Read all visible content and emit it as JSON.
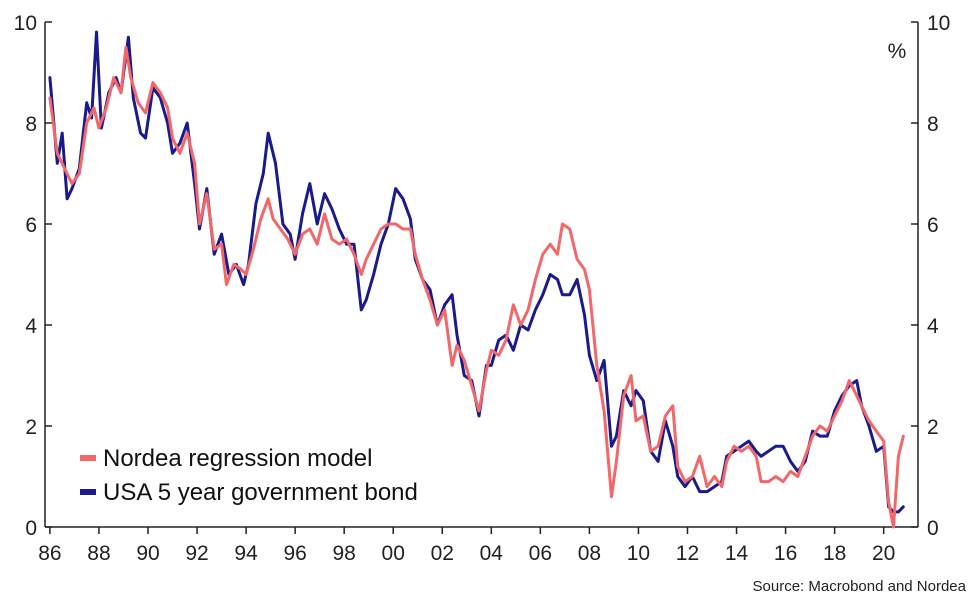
{
  "chart_data": {
    "type": "line",
    "unit_label": "%",
    "source": "Source: Macrobond and Nordea",
    "x_tick_labels": [
      "86",
      "88",
      "90",
      "92",
      "94",
      "96",
      "98",
      "00",
      "02",
      "04",
      "06",
      "08",
      "10",
      "12",
      "14",
      "16",
      "18",
      "20"
    ],
    "y_tick_labels": [
      "0",
      "2",
      "4",
      "6",
      "8",
      "10"
    ],
    "xlim": [
      1985.8,
      2021.4
    ],
    "ylim": [
      0,
      10
    ],
    "legend_position": "bottom-left",
    "grid": false,
    "series": [
      {
        "name": "Nordea regression model",
        "color": "#f2686a",
        "points": [
          [
            1986.0,
            8.5
          ],
          [
            1986.3,
            7.4
          ],
          [
            1986.6,
            7.1
          ],
          [
            1986.9,
            6.8
          ],
          [
            1987.2,
            7.0
          ],
          [
            1987.5,
            8.0
          ],
          [
            1987.8,
            8.3
          ],
          [
            1988.0,
            7.9
          ],
          [
            1988.3,
            8.3
          ],
          [
            1988.6,
            8.9
          ],
          [
            1988.9,
            8.6
          ],
          [
            1989.1,
            9.5
          ],
          [
            1989.3,
            8.9
          ],
          [
            1989.6,
            8.4
          ],
          [
            1989.9,
            8.2
          ],
          [
            1990.2,
            8.8
          ],
          [
            1990.5,
            8.6
          ],
          [
            1990.8,
            8.3
          ],
          [
            1991.0,
            7.7
          ],
          [
            1991.3,
            7.4
          ],
          [
            1991.6,
            7.8
          ],
          [
            1991.9,
            7.2
          ],
          [
            1992.1,
            6.0
          ],
          [
            1992.4,
            6.6
          ],
          [
            1992.7,
            5.5
          ],
          [
            1993.0,
            5.6
          ],
          [
            1993.2,
            4.8
          ],
          [
            1993.5,
            5.2
          ],
          [
            1993.8,
            5.1
          ],
          [
            1994.0,
            5.0
          ],
          [
            1994.3,
            5.5
          ],
          [
            1994.6,
            6.1
          ],
          [
            1994.9,
            6.5
          ],
          [
            1995.1,
            6.1
          ],
          [
            1995.4,
            5.9
          ],
          [
            1995.7,
            5.7
          ],
          [
            1996.0,
            5.4
          ],
          [
            1996.3,
            5.8
          ],
          [
            1996.6,
            5.9
          ],
          [
            1996.9,
            5.6
          ],
          [
            1997.2,
            6.2
          ],
          [
            1997.5,
            5.7
          ],
          [
            1997.8,
            5.6
          ],
          [
            1998.1,
            5.7
          ],
          [
            1998.4,
            5.4
          ],
          [
            1998.7,
            5.0
          ],
          [
            1998.9,
            5.3
          ],
          [
            1999.2,
            5.6
          ],
          [
            1999.5,
            5.9
          ],
          [
            1999.8,
            6.0
          ],
          [
            2000.1,
            6.0
          ],
          [
            2000.4,
            5.9
          ],
          [
            2000.7,
            5.9
          ],
          [
            2000.9,
            5.4
          ],
          [
            2001.2,
            4.9
          ],
          [
            2001.5,
            4.5
          ],
          [
            2001.8,
            4.0
          ],
          [
            2002.1,
            4.3
          ],
          [
            2002.4,
            3.2
          ],
          [
            2002.6,
            3.6
          ],
          [
            2002.9,
            3.3
          ],
          [
            2003.2,
            2.8
          ],
          [
            2003.5,
            2.3
          ],
          [
            2003.8,
            3.1
          ],
          [
            2004.0,
            3.5
          ],
          [
            2004.3,
            3.4
          ],
          [
            2004.6,
            3.7
          ],
          [
            2004.9,
            4.4
          ],
          [
            2005.2,
            4.0
          ],
          [
            2005.5,
            4.3
          ],
          [
            2005.8,
            4.9
          ],
          [
            2006.1,
            5.4
          ],
          [
            2006.4,
            5.6
          ],
          [
            2006.7,
            5.4
          ],
          [
            2006.9,
            6.0
          ],
          [
            2007.2,
            5.9
          ],
          [
            2007.5,
            5.3
          ],
          [
            2007.8,
            5.1
          ],
          [
            2008.0,
            4.7
          ],
          [
            2008.3,
            3.2
          ],
          [
            2008.6,
            2.3
          ],
          [
            2008.9,
            0.6
          ],
          [
            2009.1,
            1.3
          ],
          [
            2009.4,
            2.6
          ],
          [
            2009.7,
            3.0
          ],
          [
            2009.9,
            2.1
          ],
          [
            2010.2,
            2.2
          ],
          [
            2010.5,
            1.5
          ],
          [
            2010.8,
            1.6
          ],
          [
            2011.1,
            2.2
          ],
          [
            2011.4,
            2.4
          ],
          [
            2011.6,
            1.2
          ],
          [
            2011.9,
            0.9
          ],
          [
            2012.2,
            1.0
          ],
          [
            2012.5,
            1.4
          ],
          [
            2012.8,
            0.8
          ],
          [
            2013.1,
            1.0
          ],
          [
            2013.4,
            0.8
          ],
          [
            2013.6,
            1.3
          ],
          [
            2013.9,
            1.6
          ],
          [
            2014.2,
            1.5
          ],
          [
            2014.5,
            1.6
          ],
          [
            2014.8,
            1.4
          ],
          [
            2015.0,
            0.9
          ],
          [
            2015.3,
            0.9
          ],
          [
            2015.6,
            1.0
          ],
          [
            2015.9,
            0.9
          ],
          [
            2016.2,
            1.1
          ],
          [
            2016.5,
            1.0
          ],
          [
            2016.8,
            1.4
          ],
          [
            2017.1,
            1.8
          ],
          [
            2017.4,
            2.0
          ],
          [
            2017.7,
            1.9
          ],
          [
            2018.0,
            2.2
          ],
          [
            2018.3,
            2.5
          ],
          [
            2018.6,
            2.9
          ],
          [
            2018.9,
            2.6
          ],
          [
            2019.1,
            2.4
          ],
          [
            2019.4,
            2.1
          ],
          [
            2019.7,
            1.9
          ],
          [
            2020.0,
            1.7
          ],
          [
            2020.2,
            0.5
          ],
          [
            2020.4,
            0.0
          ],
          [
            2020.6,
            1.4
          ],
          [
            2020.8,
            1.8
          ]
        ]
      },
      {
        "name": "USA 5 year government bond",
        "color": "#1a1a8c",
        "points": [
          [
            1986.0,
            8.9
          ],
          [
            1986.3,
            7.2
          ],
          [
            1986.5,
            7.8
          ],
          [
            1986.7,
            6.5
          ],
          [
            1986.9,
            6.7
          ],
          [
            1987.2,
            7.1
          ],
          [
            1987.5,
            8.4
          ],
          [
            1987.7,
            8.1
          ],
          [
            1987.9,
            9.8
          ],
          [
            1988.1,
            7.9
          ],
          [
            1988.4,
            8.6
          ],
          [
            1988.7,
            8.9
          ],
          [
            1988.9,
            8.6
          ],
          [
            1989.2,
            9.7
          ],
          [
            1989.4,
            8.5
          ],
          [
            1989.7,
            7.8
          ],
          [
            1989.9,
            7.7
          ],
          [
            1990.2,
            8.7
          ],
          [
            1990.5,
            8.5
          ],
          [
            1990.8,
            8.0
          ],
          [
            1991.0,
            7.4
          ],
          [
            1991.3,
            7.6
          ],
          [
            1991.6,
            8.0
          ],
          [
            1991.9,
            6.8
          ],
          [
            1992.1,
            5.9
          ],
          [
            1992.4,
            6.7
          ],
          [
            1992.7,
            5.4
          ],
          [
            1993.0,
            5.8
          ],
          [
            1993.3,
            5.0
          ],
          [
            1993.6,
            5.2
          ],
          [
            1993.9,
            4.8
          ],
          [
            1994.1,
            5.2
          ],
          [
            1994.4,
            6.4
          ],
          [
            1994.7,
            7.0
          ],
          [
            1994.9,
            7.8
          ],
          [
            1995.2,
            7.2
          ],
          [
            1995.5,
            6.0
          ],
          [
            1995.8,
            5.8
          ],
          [
            1996.0,
            5.3
          ],
          [
            1996.3,
            6.2
          ],
          [
            1996.6,
            6.8
          ],
          [
            1996.9,
            6.0
          ],
          [
            1997.2,
            6.6
          ],
          [
            1997.5,
            6.3
          ],
          [
            1997.8,
            5.9
          ],
          [
            1998.1,
            5.6
          ],
          [
            1998.4,
            5.6
          ],
          [
            1998.7,
            4.3
          ],
          [
            1998.9,
            4.5
          ],
          [
            1999.2,
            5.0
          ],
          [
            1999.5,
            5.6
          ],
          [
            1999.8,
            6.0
          ],
          [
            2000.1,
            6.7
          ],
          [
            2000.4,
            6.5
          ],
          [
            2000.7,
            6.1
          ],
          [
            2000.9,
            5.3
          ],
          [
            2001.2,
            4.9
          ],
          [
            2001.5,
            4.7
          ],
          [
            2001.8,
            4.0
          ],
          [
            2002.1,
            4.4
          ],
          [
            2002.4,
            4.6
          ],
          [
            2002.6,
            3.8
          ],
          [
            2002.9,
            3.0
          ],
          [
            2003.2,
            2.9
          ],
          [
            2003.5,
            2.2
          ],
          [
            2003.8,
            3.2
          ],
          [
            2004.0,
            3.2
          ],
          [
            2004.3,
            3.7
          ],
          [
            2004.6,
            3.8
          ],
          [
            2004.9,
            3.5
          ],
          [
            2005.2,
            4.0
          ],
          [
            2005.5,
            3.9
          ],
          [
            2005.8,
            4.3
          ],
          [
            2006.1,
            4.6
          ],
          [
            2006.4,
            5.0
          ],
          [
            2006.7,
            4.9
          ],
          [
            2006.9,
            4.6
          ],
          [
            2007.2,
            4.6
          ],
          [
            2007.5,
            4.9
          ],
          [
            2007.8,
            4.2
          ],
          [
            2008.0,
            3.4
          ],
          [
            2008.3,
            2.9
          ],
          [
            2008.6,
            3.3
          ],
          [
            2008.9,
            1.6
          ],
          [
            2009.1,
            1.8
          ],
          [
            2009.4,
            2.7
          ],
          [
            2009.7,
            2.4
          ],
          [
            2009.9,
            2.7
          ],
          [
            2010.2,
            2.5
          ],
          [
            2010.5,
            1.5
          ],
          [
            2010.8,
            1.3
          ],
          [
            2011.1,
            2.1
          ],
          [
            2011.4,
            1.6
          ],
          [
            2011.6,
            1.0
          ],
          [
            2011.9,
            0.8
          ],
          [
            2012.2,
            1.0
          ],
          [
            2012.5,
            0.7
          ],
          [
            2012.8,
            0.7
          ],
          [
            2013.1,
            0.8
          ],
          [
            2013.4,
            0.9
          ],
          [
            2013.6,
            1.4
          ],
          [
            2013.9,
            1.5
          ],
          [
            2014.2,
            1.6
          ],
          [
            2014.5,
            1.7
          ],
          [
            2014.8,
            1.5
          ],
          [
            2015.0,
            1.4
          ],
          [
            2015.3,
            1.5
          ],
          [
            2015.6,
            1.6
          ],
          [
            2015.9,
            1.6
          ],
          [
            2016.2,
            1.3
          ],
          [
            2016.5,
            1.1
          ],
          [
            2016.8,
            1.3
          ],
          [
            2017.1,
            1.9
          ],
          [
            2017.4,
            1.8
          ],
          [
            2017.7,
            1.8
          ],
          [
            2018.0,
            2.3
          ],
          [
            2018.3,
            2.6
          ],
          [
            2018.6,
            2.8
          ],
          [
            2018.9,
            2.9
          ],
          [
            2019.1,
            2.4
          ],
          [
            2019.4,
            2.0
          ],
          [
            2019.7,
            1.5
          ],
          [
            2020.0,
            1.6
          ],
          [
            2020.2,
            0.4
          ],
          [
            2020.4,
            0.3
          ],
          [
            2020.6,
            0.3
          ],
          [
            2020.8,
            0.4
          ]
        ]
      }
    ]
  }
}
